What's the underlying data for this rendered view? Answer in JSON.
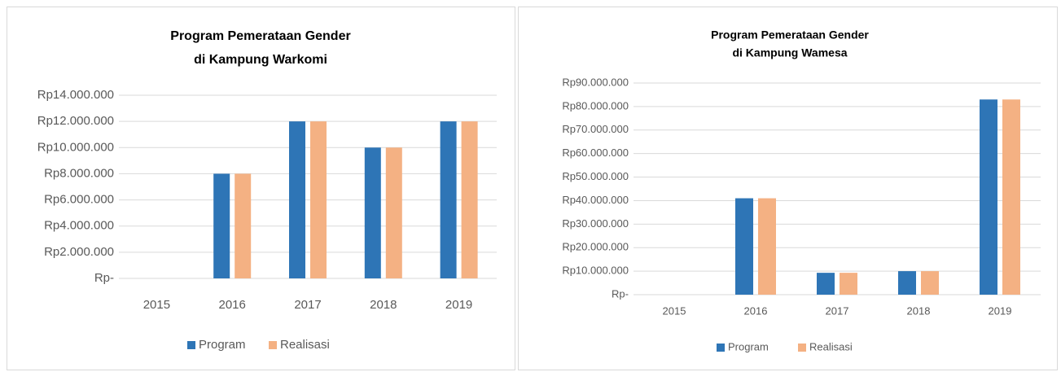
{
  "chart_data": [
    {
      "type": "bar",
      "title": [
        "Program Pemerataan Gender",
        "di Kampung Warkomi"
      ],
      "categories": [
        "2015",
        "2016",
        "2017",
        "2018",
        "2019"
      ],
      "series": [
        {
          "name": "Program",
          "color": "#2e75b6",
          "values": [
            0,
            8000000,
            12000000,
            10000000,
            12000000
          ]
        },
        {
          "name": "Realisasi",
          "color": "#f4b183",
          "values": [
            0,
            8000000,
            12000000,
            10000000,
            12000000
          ]
        }
      ],
      "ylim": [
        0,
        14000000
      ],
      "yticks": [
        {
          "value": 0,
          "label": "Rp-"
        },
        {
          "value": 2000000,
          "label": "Rp2.000.000"
        },
        {
          "value": 4000000,
          "label": "Rp4.000.000"
        },
        {
          "value": 6000000,
          "label": "Rp6.000.000"
        },
        {
          "value": 8000000,
          "label": "Rp8.000.000"
        },
        {
          "value": 10000000,
          "label": "Rp10.000.000"
        },
        {
          "value": 12000000,
          "label": "Rp12.000.000"
        },
        {
          "value": 14000000,
          "label": "Rp14.000.000"
        }
      ],
      "grid": true,
      "legend": "bottom"
    },
    {
      "type": "bar",
      "title": [
        "Program Pemerataan Gender",
        "di Kampung Wamesa"
      ],
      "categories": [
        "2015",
        "2016",
        "2017",
        "2018",
        "2019"
      ],
      "series": [
        {
          "name": "Program",
          "color": "#2e75b6",
          "values": [
            0,
            41000000,
            9300000,
            10000000,
            83000000
          ]
        },
        {
          "name": "Realisasi",
          "color": "#f4b183",
          "values": [
            0,
            41000000,
            9300000,
            10000000,
            83000000
          ]
        }
      ],
      "ylim": [
        0,
        90000000
      ],
      "yticks": [
        {
          "value": 0,
          "label": "Rp-"
        },
        {
          "value": 10000000,
          "label": "Rp10.000.000"
        },
        {
          "value": 20000000,
          "label": "Rp20.000.000"
        },
        {
          "value": 30000000,
          "label": "Rp30.000.000"
        },
        {
          "value": 40000000,
          "label": "Rp40.000.000"
        },
        {
          "value": 50000000,
          "label": "Rp50.000.000"
        },
        {
          "value": 60000000,
          "label": "Rp60.000.000"
        },
        {
          "value": 70000000,
          "label": "Rp70.000.000"
        },
        {
          "value": 80000000,
          "label": "Rp80.000.000"
        },
        {
          "value": 90000000,
          "label": "Rp90.000.000"
        }
      ],
      "grid": true,
      "legend": "bottom"
    }
  ]
}
